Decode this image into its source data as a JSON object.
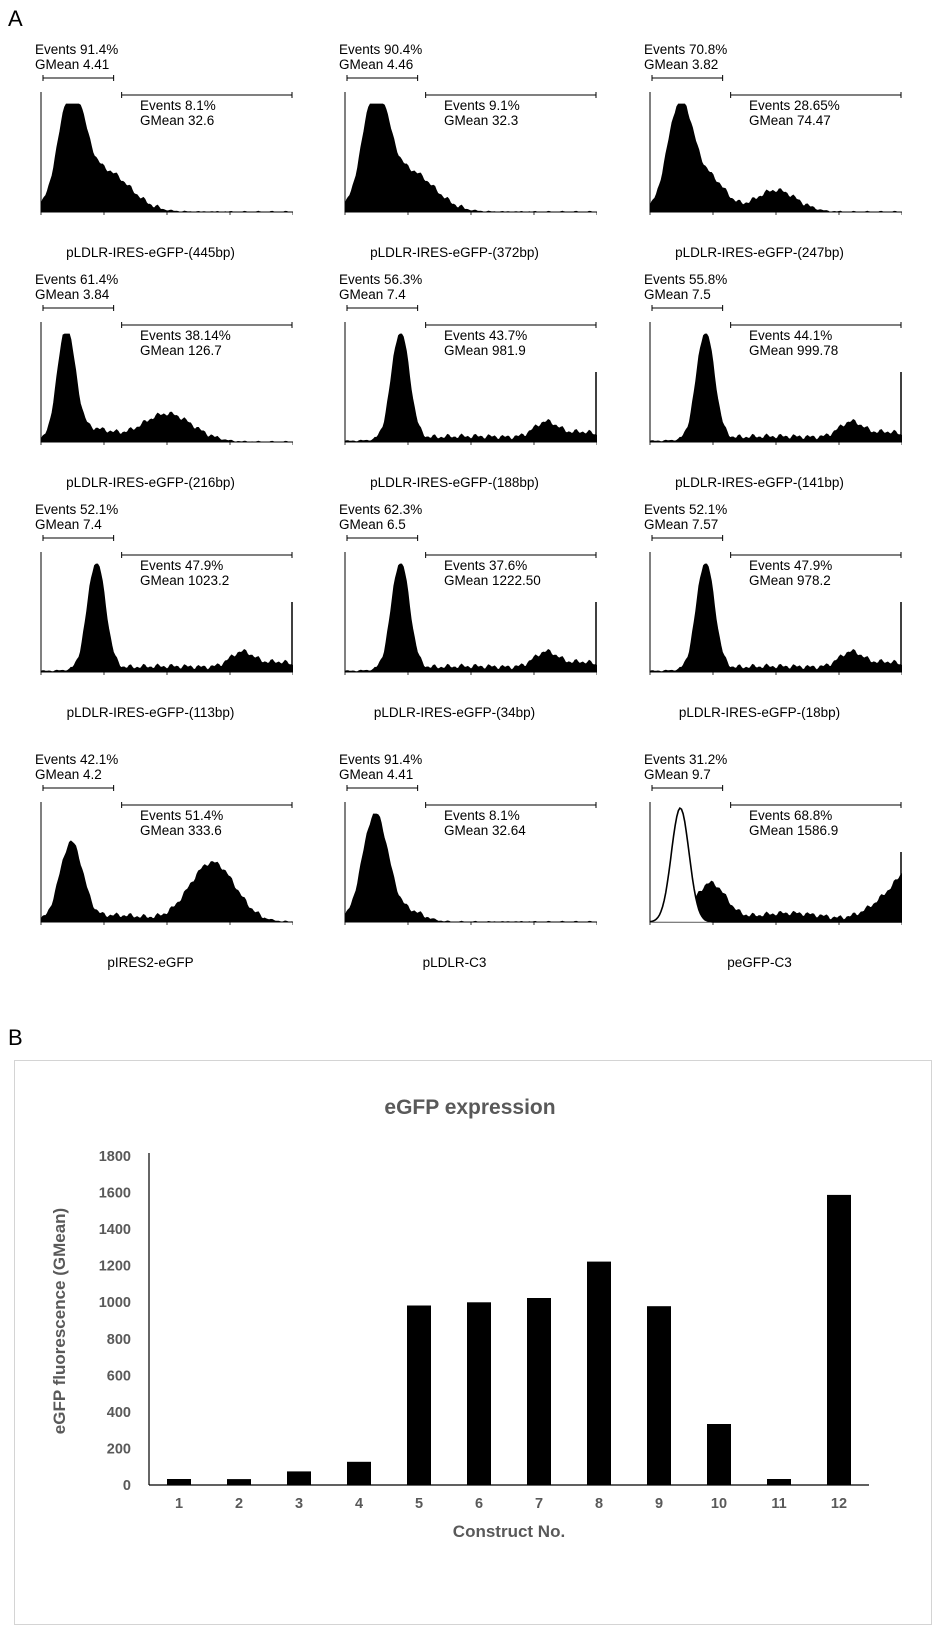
{
  "panelA": {
    "label": "A",
    "plots": [
      {
        "left_events": "Events 91.4%",
        "left_gmean": "GMean 4.41",
        "right_events": "Events 8.1%",
        "right_gmean": "GMean 32.6",
        "caption": "pLDLR-IRES-eGFP-(445bp)",
        "profile": "low",
        "open": false
      },
      {
        "left_events": "Events 90.4%",
        "left_gmean": "GMean 4.46",
        "right_events": "Events 9.1%",
        "right_gmean": "GMean 32.3",
        "caption": "pLDLR-IRES-eGFP-(372bp)",
        "profile": "low",
        "open": false
      },
      {
        "left_events": "Events 70.8%",
        "left_gmean": "GMean 3.82",
        "right_events": "Events 28.65%",
        "right_gmean": "GMean 74.47",
        "caption": "pLDLR-IRES-eGFP-(247bp)",
        "profile": "mid",
        "open": false
      },
      {
        "left_events": "Events 61.4%",
        "left_gmean": "GMean 3.84",
        "right_events": "Events 38.14%",
        "right_gmean": "GMean 126.7",
        "caption": "pLDLR-IRES-eGFP-(216bp)",
        "profile": "bimodal",
        "open": false
      },
      {
        "left_events": "Events 56.3%",
        "left_gmean": "GMean 7.4",
        "right_events": "Events 43.7%",
        "right_gmean": "GMean 981.9",
        "caption": "pLDLR-IRES-eGFP-(188bp)",
        "profile": "high",
        "open": false
      },
      {
        "left_events": "Events 55.8%",
        "left_gmean": "GMean 7.5",
        "right_events": "Events 44.1%",
        "right_gmean": "GMean 999.78",
        "caption": "pLDLR-IRES-eGFP-(141bp)",
        "profile": "high",
        "open": false
      },
      {
        "left_events": "Events 52.1%",
        "left_gmean": "GMean 7.4",
        "right_events": "Events 47.9%",
        "right_gmean": "GMean 1023.2",
        "caption": "pLDLR-IRES-eGFP-(113bp)",
        "profile": "high",
        "open": false
      },
      {
        "left_events": "Events 62.3%",
        "left_gmean": "GMean 6.5",
        "right_events": "Events 37.6%",
        "right_gmean": "GMean 1222.50",
        "caption": "pLDLR-IRES-eGFP-(34bp)",
        "profile": "high",
        "open": false
      },
      {
        "left_events": "Events 52.1%",
        "left_gmean": "GMean 7.57",
        "right_events": "Events 47.9%",
        "right_gmean": "GMean 978.2",
        "caption": "pLDLR-IRES-eGFP-(18bp)",
        "profile": "high",
        "open": false
      },
      {
        "left_events": "Events 42.1%",
        "left_gmean": "GMean 4.2",
        "right_events": "Events 51.4%",
        "right_gmean": "GMean 333.6",
        "caption": "pIRES2-eGFP",
        "profile": "ires",
        "open": false
      },
      {
        "left_events": "Events 91.4%",
        "left_gmean": "GMean 4.41",
        "right_events": "Events 8.1%",
        "right_gmean": "GMean 32.64",
        "caption": "pLDLR-C3",
        "profile": "c3",
        "open": false
      },
      {
        "left_events": "Events 31.2%",
        "left_gmean": "GMean 9.7",
        "right_events": "Events 68.8%",
        "right_gmean": "GMean 1586.9",
        "caption": "peGFP-C3",
        "profile": "egfp",
        "open": true
      }
    ]
  },
  "panelB": {
    "label": "B"
  },
  "chart_data": {
    "type": "bar",
    "title": "eGFP expression",
    "xlabel": "Construct No.",
    "ylabel": "eGFP fluorescence (GMean)",
    "categories": [
      "1",
      "2",
      "3",
      "4",
      "5",
      "6",
      "7",
      "8",
      "9",
      "10",
      "11",
      "12"
    ],
    "values": [
      32.6,
      32.3,
      74.47,
      126.7,
      981.9,
      999.78,
      1023.2,
      1222.5,
      978.2,
      333.6,
      32.64,
      1586.9
    ],
    "ylim": [
      0,
      1800
    ],
    "yticks": [
      "0",
      "200",
      "400",
      "600",
      "800",
      "1000",
      "1200",
      "1400",
      "1600",
      "1800"
    ],
    "bar_color": "#000000",
    "grid": false,
    "legend": "none"
  }
}
